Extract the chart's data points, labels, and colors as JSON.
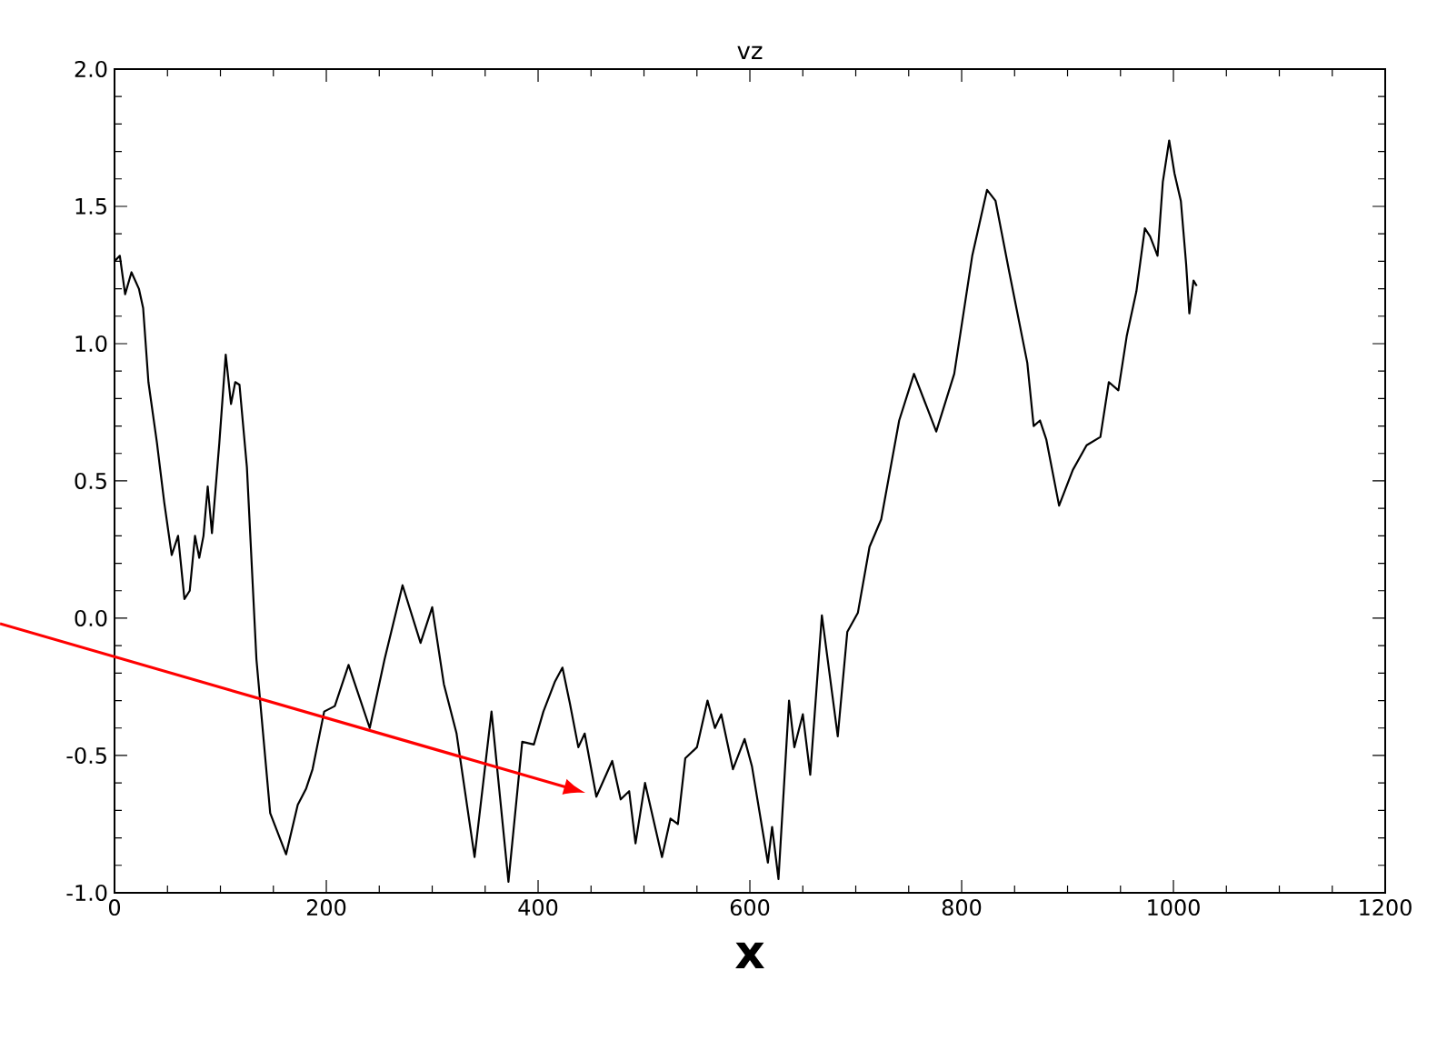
{
  "chart_data": {
    "type": "line",
    "title": "vz",
    "xlabel": "x",
    "xlim": [
      0,
      1200
    ],
    "ylim": [
      -1.0,
      2.0
    ],
    "xticks": [
      0,
      200,
      400,
      600,
      800,
      1000,
      1200
    ],
    "yticks": [
      {
        "value": -1.0,
        "label": "-1.0"
      },
      {
        "value": -0.5,
        "label": "-0.5"
      },
      {
        "value": 0.0,
        "label": "0.0"
      },
      {
        "value": 0.5,
        "label": "0.5"
      },
      {
        "value": 1.0,
        "label": "1.0"
      },
      {
        "value": 1.5,
        "label": "1.5"
      },
      {
        "value": 2.0,
        "label": "2.0"
      }
    ],
    "grid": false,
    "marker": "none",
    "line_style": "solid",
    "series": [
      {
        "color": "#000000",
        "x": [
          0,
          5,
          10,
          16,
          23,
          27,
          32,
          40,
          47,
          54,
          60,
          66,
          71,
          76,
          80,
          84,
          88,
          92,
          99,
          105,
          110,
          114,
          118,
          125,
          134,
          147,
          162,
          173,
          181,
          187,
          198,
          208,
          221,
          241,
          255,
          272,
          289,
          300,
          311,
          323,
          340,
          356,
          372,
          385,
          396,
          405,
          416,
          423,
          430,
          438,
          444,
          455,
          470,
          478,
          486,
          492,
          501,
          517,
          525,
          532,
          539,
          550,
          560,
          567,
          573,
          584,
          595,
          602,
          617,
          621,
          627,
          637,
          642,
          650,
          657,
          668,
          683,
          692,
          702,
          713,
          724,
          741,
          755,
          768,
          776,
          793,
          810,
          824,
          832,
          845,
          862,
          868,
          874,
          880,
          892,
          905,
          918,
          931,
          939,
          948,
          956,
          965,
          973,
          978,
          985,
          990,
          996,
          1001,
          1007,
          1012,
          1015,
          1019,
          1022
        ],
        "values": [
          1.3,
          1.32,
          1.18,
          1.26,
          1.2,
          1.13,
          0.86,
          0.64,
          0.42,
          0.23,
          0.3,
          0.07,
          0.1,
          0.3,
          0.22,
          0.3,
          0.48,
          0.31,
          0.64,
          0.96,
          0.78,
          0.86,
          0.85,
          0.55,
          -0.15,
          -0.71,
          -0.86,
          -0.68,
          -0.62,
          -0.55,
          -0.34,
          -0.32,
          -0.17,
          -0.4,
          -0.15,
          0.12,
          -0.09,
          0.04,
          -0.24,
          -0.42,
          -0.87,
          -0.34,
          -0.96,
          -0.45,
          -0.46,
          -0.34,
          -0.23,
          -0.18,
          -0.31,
          -0.47,
          -0.42,
          -0.65,
          -0.52,
          -0.66,
          -0.63,
          -0.82,
          -0.6,
          -0.87,
          -0.73,
          -0.75,
          -0.51,
          -0.47,
          -0.3,
          -0.4,
          -0.35,
          -0.55,
          -0.44,
          -0.54,
          -0.89,
          -0.76,
          -0.95,
          -0.3,
          -0.47,
          -0.35,
          -0.57,
          0.01,
          -0.43,
          -0.05,
          0.02,
          0.26,
          0.36,
          0.72,
          0.89,
          0.76,
          0.68,
          0.89,
          1.32,
          1.56,
          1.52,
          1.26,
          0.93,
          0.7,
          0.72,
          0.65,
          0.41,
          0.54,
          0.63,
          0.66,
          0.86,
          0.83,
          1.03,
          1.19,
          1.42,
          1.39,
          1.32,
          1.59,
          1.74,
          1.62,
          1.52,
          1.29,
          1.11,
          1.23,
          1.21
        ]
      }
    ]
  }
}
